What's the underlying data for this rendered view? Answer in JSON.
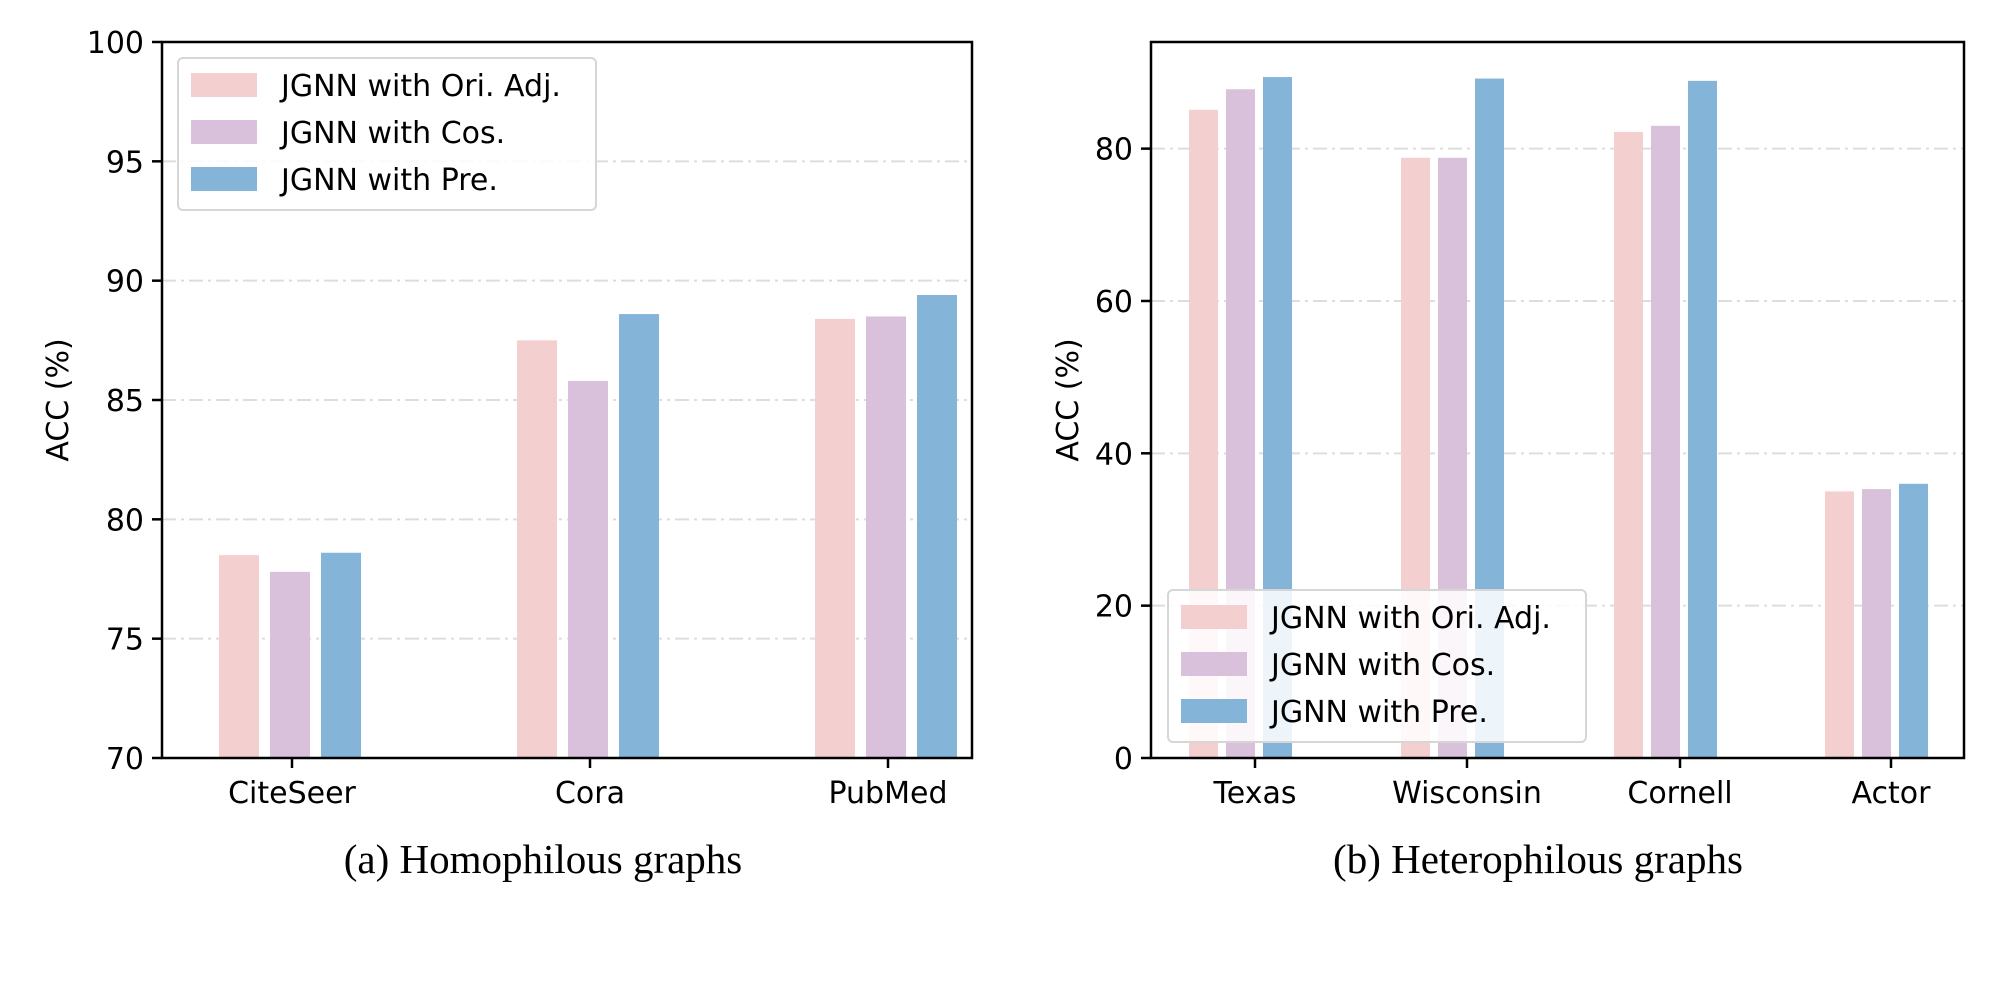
{
  "colors": {
    "ori_adj": "#f4cfd0",
    "cos": "#d9c1dc",
    "pre": "#84b5d9",
    "grid": "#dddddd"
  },
  "chart_data": [
    {
      "type": "bar",
      "caption": "(a) Homophilous graphs",
      "categories": [
        "CiteSeer",
        "Cora",
        "PubMed"
      ],
      "series": [
        {
          "name": "JGNN with Ori. Adj.",
          "values": [
            78.5,
            87.5,
            88.4
          ]
        },
        {
          "name": "JGNN with Cos.",
          "values": [
            77.8,
            85.8,
            88.5
          ]
        },
        {
          "name": "JGNN with Pre.",
          "values": [
            78.6,
            88.6,
            89.4
          ]
        }
      ],
      "xlabel": "",
      "ylabel": "ACC (%)",
      "ylim": [
        70,
        100
      ],
      "yticks": [
        70,
        75,
        80,
        85,
        90,
        95,
        100
      ],
      "grid": true,
      "legend": "top-left"
    },
    {
      "type": "bar",
      "caption": "(b) Heterophilous graphs",
      "categories": [
        "Texas",
        "Wisconsin",
        "Cornell",
        "Actor"
      ],
      "series": [
        {
          "name": "JGNN with Ori. Adj.",
          "values": [
            85.1,
            78.8,
            82.2,
            35.0
          ]
        },
        {
          "name": "JGNN with Cos.",
          "values": [
            87.8,
            78.8,
            83.0,
            35.3
          ]
        },
        {
          "name": "JGNN with Pre.",
          "values": [
            89.4,
            89.2,
            88.9,
            36.0
          ]
        }
      ],
      "xlabel": "",
      "ylabel": "ACC (%)",
      "ylim": [
        0,
        94
      ],
      "yticks": [
        0,
        20,
        40,
        60,
        80
      ],
      "grid": true,
      "legend": "bottom-left"
    }
  ]
}
